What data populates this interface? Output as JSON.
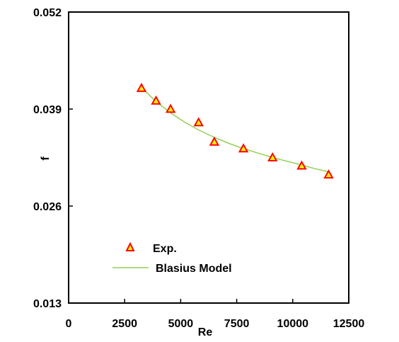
{
  "chart_data": {
    "type": "scatter",
    "xlabel": "Re",
    "ylabel": "f",
    "xlim": [
      0,
      12500
    ],
    "ylim": [
      0.013,
      0.052
    ],
    "x_ticks": [
      "0",
      "2500",
      "5000",
      "7500",
      "10000",
      "12500"
    ],
    "y_ticks": [
      "0.052",
      "0.039",
      "0.026",
      "0.013"
    ],
    "grid": false,
    "legend_position": "bottom-left",
    "series": [
      {
        "name": "Exp.",
        "kind": "markers",
        "marker": "triangle",
        "color": "#ff0000",
        "fill": "#ffff00",
        "x": [
          3250,
          3900,
          4550,
          5800,
          6500,
          7800,
          9100,
          10400,
          11600
        ],
        "y": [
          0.0418,
          0.0401,
          0.039,
          0.0372,
          0.0346,
          0.0337,
          0.0325,
          0.0314,
          0.0302
        ]
      },
      {
        "name": "Blasius Model",
        "kind": "line",
        "color": "#92d050",
        "x": [
          3250,
          3900,
          4550,
          5200,
          5800,
          6500,
          7150,
          7800,
          8450,
          9100,
          9750,
          10400,
          11000,
          11600
        ],
        "y": [
          0.0419,
          0.04,
          0.0385,
          0.0372,
          0.0362,
          0.0352,
          0.0344,
          0.0337,
          0.0331,
          0.0325,
          0.032,
          0.0315,
          0.031,
          0.0306
        ]
      }
    ]
  }
}
